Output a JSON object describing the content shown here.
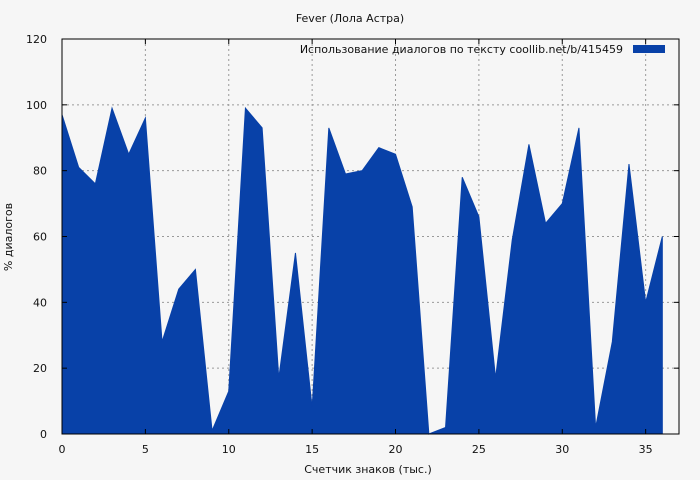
{
  "chart_data": {
    "type": "area",
    "title": "Fever (Лола Астра)",
    "xlabel": "Счетчик знаков (тыс.)",
    "ylabel": "% диалогов",
    "xlim": [
      0,
      37
    ],
    "ylim": [
      0,
      120
    ],
    "x_ticks": [
      0,
      5,
      10,
      15,
      20,
      25,
      30,
      35
    ],
    "y_ticks": [
      0,
      20,
      40,
      60,
      80,
      100,
      120
    ],
    "grid": true,
    "legend_position": "top-right",
    "colors": {
      "series": "#0841a8",
      "background": "#f6f6f6",
      "plot_border": "#000000",
      "grid": "#9a9a9a"
    },
    "series": [
      {
        "name": "Использование диалогов по тексту  coollib.net/b/415459",
        "x": [
          0,
          1,
          2,
          3,
          4,
          5,
          6,
          7,
          8,
          9,
          10,
          11,
          12,
          13,
          14,
          15,
          16,
          17,
          18,
          19,
          20,
          21,
          22,
          23,
          24,
          25,
          26,
          27,
          28,
          29,
          30,
          31,
          32,
          33,
          34,
          35,
          36
        ],
        "values": [
          97,
          81,
          76,
          99,
          85,
          96,
          28,
          44,
          50,
          1,
          13,
          99,
          93,
          17,
          55,
          8,
          93,
          79,
          80,
          87,
          85,
          69,
          0,
          2,
          78,
          66,
          17,
          59,
          88,
          64,
          70,
          93,
          2,
          28,
          82,
          40,
          60
        ]
      }
    ]
  }
}
